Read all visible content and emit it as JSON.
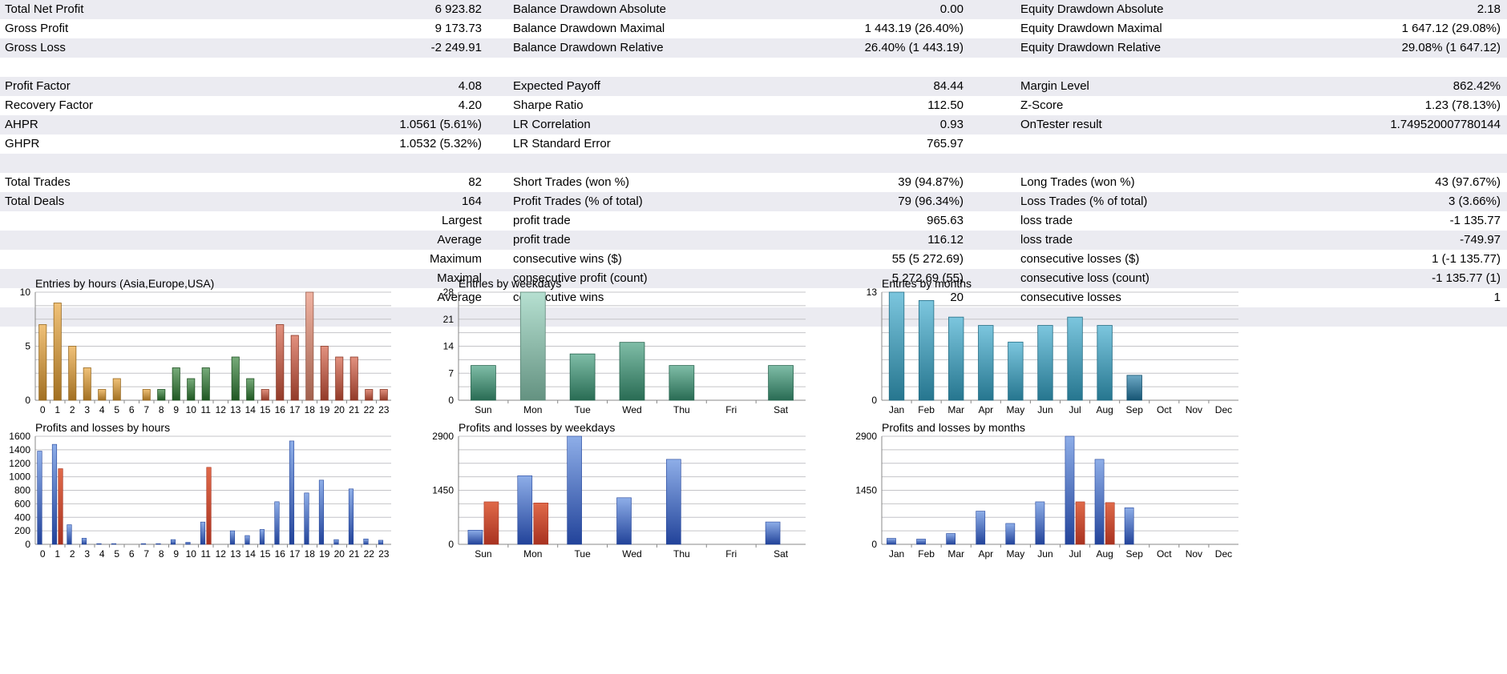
{
  "stats": {
    "rows": [
      [
        "Total Net Profit",
        "6 923.82",
        "Balance Drawdown Absolute",
        "0.00",
        "Equity Drawdown Absolute",
        "2.18"
      ],
      [
        "Gross Profit",
        "9 173.73",
        "Balance Drawdown Maximal",
        "1 443.19 (26.40%)",
        "Equity Drawdown Maximal",
        "1 647.12 (29.08%)"
      ],
      [
        "Gross Loss",
        "-2 249.91",
        "Balance Drawdown Relative",
        "26.40% (1 443.19)",
        "Equity Drawdown Relative",
        "29.08% (1 647.12)"
      ],
      null,
      [
        "Profit Factor",
        "4.08",
        "Expected Payoff",
        "84.44",
        "Margin Level",
        "862.42%"
      ],
      [
        "Recovery Factor",
        "4.20",
        "Sharpe Ratio",
        "112.50",
        "Z-Score",
        "1.23 (78.13%)"
      ],
      [
        "AHPR",
        "1.0561 (5.61%)",
        "LR Correlation",
        "0.93",
        "OnTester result",
        "1.749520007780144"
      ],
      [
        "GHPR",
        "1.0532 (5.32%)",
        "LR Standard Error",
        "765.97",
        "",
        ""
      ],
      null,
      [
        "Total Trades",
        "82",
        "Short Trades (won %)",
        "39 (94.87%)",
        "Long Trades (won %)",
        "43 (97.67%)"
      ],
      [
        "Total Deals",
        "164",
        "Profit Trades (% of total)",
        "79 (96.34%)",
        "Loss Trades (% of total)",
        "3 (3.66%)"
      ],
      [
        "",
        "Largest",
        "profit trade",
        "965.63",
        "loss trade",
        "-1 135.77"
      ],
      [
        "",
        "Average",
        "profit trade",
        "116.12",
        "loss trade",
        "-749.97"
      ],
      [
        "",
        "Maximum",
        "consecutive wins ($)",
        "55 (5 272.69)",
        "consecutive losses ($)",
        "1 (-1 135.77)"
      ],
      [
        "",
        "Maximal",
        "consecutive profit (count)",
        "5 272.69 (55)",
        "consecutive loss (count)",
        "-1 135.77 (1)"
      ],
      [
        "",
        "Average",
        "consecutive wins",
        "20",
        "consecutive losses",
        "1"
      ],
      null
    ]
  },
  "chart_data": [
    {
      "type": "bar",
      "title": "Entries by hours (Asia,Europe,USA)",
      "categories": [
        "0",
        "1",
        "2",
        "3",
        "4",
        "5",
        "6",
        "7",
        "8",
        "9",
        "10",
        "11",
        "12",
        "13",
        "14",
        "15",
        "16",
        "17",
        "18",
        "19",
        "20",
        "21",
        "22",
        "23"
      ],
      "values": [
        7,
        9,
        5,
        3,
        1,
        2,
        0,
        1,
        1,
        3,
        2,
        3,
        0,
        4,
        2,
        1,
        7,
        6,
        10,
        5,
        4,
        4,
        1,
        1
      ],
      "yticks": [
        0,
        5,
        10
      ],
      "ylim": [
        0,
        10
      ],
      "colors": [
        "#e8a030",
        "#e8a030",
        "#e8a030",
        "#e8a030",
        "#e8a030",
        "#e8a030",
        "#e8a030",
        "#e8a030",
        "#2e7d32",
        "#2e7d32",
        "#2e7d32",
        "#2e7d32",
        "#2e7d32",
        "#2e7d32",
        "#2e7d32",
        "#d2553a",
        "#d2553a",
        "#d2553a",
        "#e88a70",
        "#d2553a",
        "#d2553a",
        "#d2553a",
        "#d2553a",
        "#d2553a"
      ]
    },
    {
      "type": "bar",
      "title": "Entries by weekdays",
      "categories": [
        "Sun",
        "Mon",
        "Tue",
        "Wed",
        "Thu",
        "Fri",
        "Sat"
      ],
      "values": [
        9,
        28,
        12,
        15,
        9,
        0,
        9
      ],
      "yticks": [
        0,
        7,
        14,
        21,
        28
      ],
      "ylim": [
        0,
        28
      ],
      "colors": [
        "#3a9a78",
        "#8fd0b8",
        "#3a9a78",
        "#3a9a78",
        "#3a9a78",
        "#3a9a78",
        "#3a9a78"
      ]
    },
    {
      "type": "bar",
      "title": "Entries by months",
      "categories": [
        "Jan",
        "Feb",
        "Mar",
        "Apr",
        "May",
        "Jun",
        "Jul",
        "Aug",
        "Sep",
        "Oct",
        "Nov",
        "Dec"
      ],
      "values": [
        13,
        12,
        10,
        9,
        7,
        9,
        10,
        9,
        3,
        0,
        0,
        0
      ],
      "yticks": [
        0,
        13
      ],
      "ylim": [
        0,
        13
      ],
      "colors": [
        "#36a8cc",
        "#36a8cc",
        "#36a8cc",
        "#36a8cc",
        "#36a8cc",
        "#36a8cc",
        "#36a8cc",
        "#36a8cc",
        "#1f7aa6",
        "#36a8cc",
        "#36a8cc",
        "#36a8cc"
      ]
    },
    {
      "type": "bar",
      "title": "Profits and losses by hours",
      "categories": [
        "0",
        "1",
        "2",
        "3",
        "4",
        "5",
        "6",
        "7",
        "8",
        "9",
        "10",
        "11",
        "12",
        "13",
        "14",
        "15",
        "16",
        "17",
        "18",
        "19",
        "20",
        "21",
        "22",
        "23"
      ],
      "series": [
        {
          "values": [
            1380,
            1480,
            290,
            90,
            10,
            10,
            0,
            10,
            10,
            70,
            30,
            330,
            0,
            200,
            130,
            220,
            630,
            1530,
            760,
            950,
            70,
            820,
            80,
            60
          ]
        },
        {
          "values": [
            0,
            1120,
            0,
            0,
            0,
            0,
            0,
            0,
            0,
            0,
            0,
            1140,
            0,
            0,
            0,
            0,
            0,
            0,
            0,
            0,
            0,
            0,
            0,
            0
          ]
        }
      ],
      "yticks": [
        0,
        200,
        400,
        600,
        800,
        1000,
        1200,
        1400,
        1600
      ],
      "ylim": [
        0,
        1600
      ]
    },
    {
      "type": "bar",
      "title": "Profits and losses by weekdays",
      "categories": [
        "Sun",
        "Mon",
        "Tue",
        "Wed",
        "Thu",
        "Fri",
        "Sat"
      ],
      "series": [
        {
          "values": [
            380,
            1840,
            2900,
            1250,
            2280,
            0,
            600
          ]
        },
        {
          "values": [
            1140,
            1110,
            0,
            0,
            0,
            0,
            0
          ]
        }
      ],
      "yticks": [
        0,
        1450,
        2900
      ],
      "ylim": [
        0,
        2900
      ]
    },
    {
      "type": "bar",
      "title": "Profits and losses by months",
      "categories": [
        "Jan",
        "Feb",
        "Mar",
        "Apr",
        "May",
        "Jun",
        "Jul",
        "Aug",
        "Sep",
        "Oct",
        "Nov",
        "Dec"
      ],
      "series": [
        {
          "values": [
            160,
            140,
            290,
            890,
            560,
            1140,
            2900,
            2280,
            980,
            0,
            0,
            0
          ]
        },
        {
          "values": [
            0,
            0,
            0,
            0,
            0,
            0,
            1140,
            1120,
            0,
            0,
            0,
            0
          ]
        }
      ],
      "yticks": [
        0,
        1450,
        2900
      ],
      "ylim": [
        0,
        2900
      ]
    }
  ],
  "colors": {
    "profit_top": "#8eaee8",
    "profit_bottom": "#22439a",
    "loss_top": "#e06a4a",
    "loss_bottom": "#a83220",
    "grid": "#c4c4c8",
    "row_shade": "#ebebf1"
  }
}
